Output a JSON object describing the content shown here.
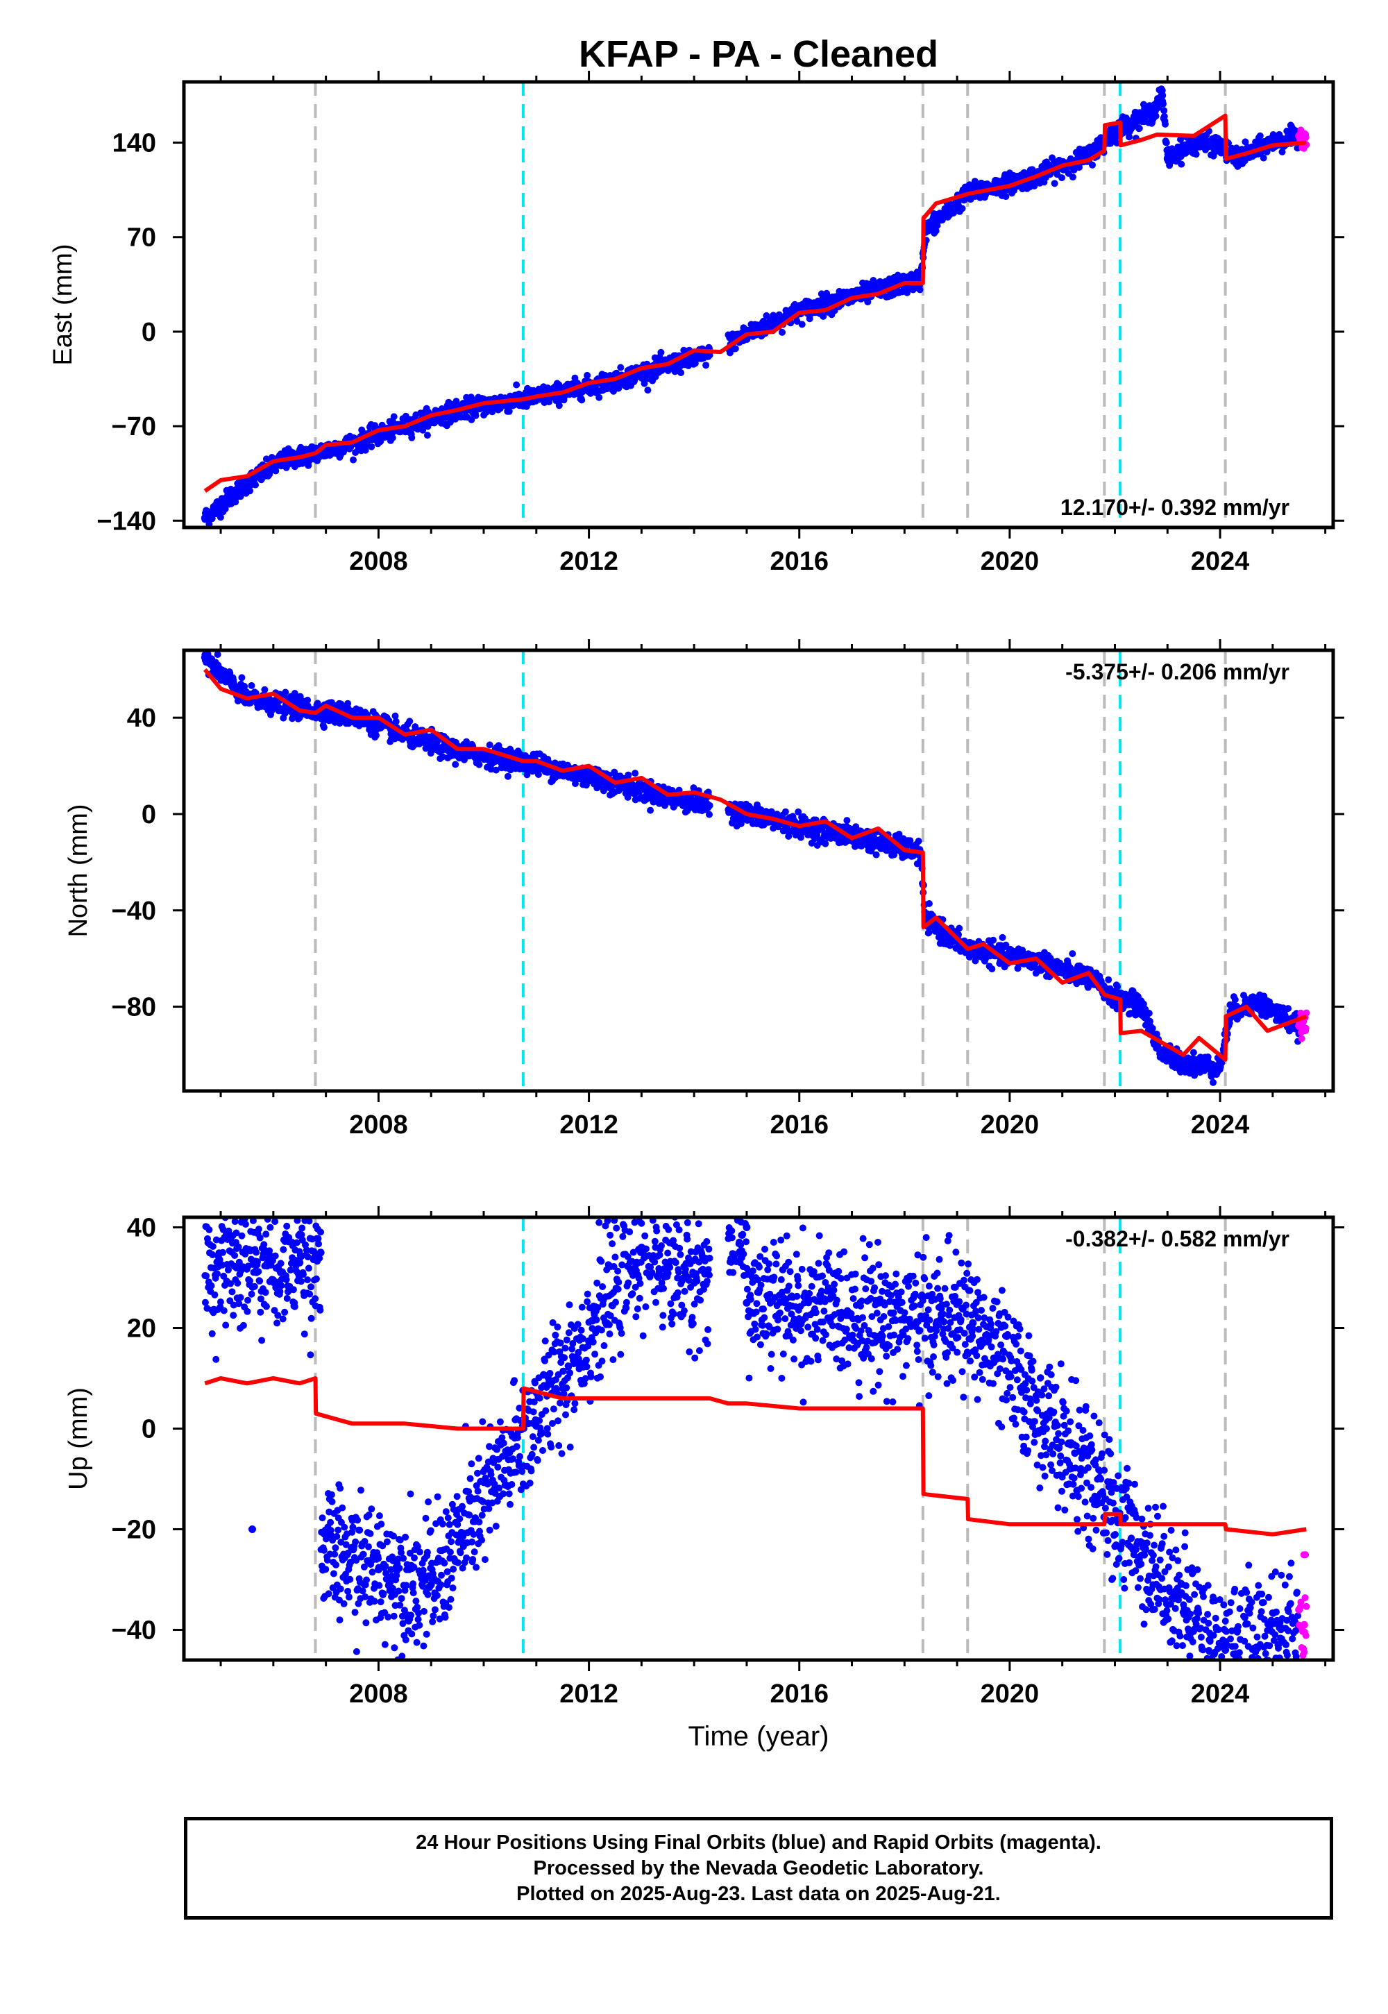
{
  "title": "KFAP  - PA - Cleaned",
  "xlabel": "Time (year)",
  "footer": {
    "line1": "24 Hour Positions Using Final Orbits (blue) and Rapid Orbits (magenta).",
    "line2": "Processed by the Nevada Geodetic Laboratory.",
    "line3": "Plotted on 2025-Aug-23. Last data on 2025-Aug-21."
  },
  "colors": {
    "final_points": "#0000ff",
    "rapid_points": "#ff00ff",
    "model": "#ff0000",
    "event_gray": "#bbbbbb",
    "event_cyan": "#00e5ee"
  },
  "chart_data": [
    {
      "type": "scatter",
      "ylabel": "East (mm)",
      "xlim": [
        2004.3,
        2026.15
      ],
      "ylim": [
        -145,
        185
      ],
      "xticks": [
        2008,
        2012,
        2016,
        2020,
        2024
      ],
      "yticks": [
        -140,
        -70,
        0,
        70,
        140
      ],
      "rate": "12.170+/- 0.392 mm/yr",
      "rate_position": "bottom-right",
      "data_start": 2004.7,
      "data_end": 2025.64,
      "rapid_start": 2025.5,
      "gaps": [
        [
          2014.3,
          2014.65
        ]
      ],
      "scatter_std": 3.5,
      "events": [
        {
          "year": 2006.8,
          "kind": "gray"
        },
        {
          "year": 2010.75,
          "kind": "cyan"
        },
        {
          "year": 2018.35,
          "kind": "gray"
        },
        {
          "year": 2019.2,
          "kind": "gray"
        },
        {
          "year": 2021.8,
          "kind": "gray"
        },
        {
          "year": 2022.1,
          "kind": "cyan"
        },
        {
          "year": 2024.1,
          "kind": "gray"
        }
      ],
      "model": [
        [
          2004.7,
          -118
        ],
        [
          2005.0,
          -110
        ],
        [
          2005.5,
          -107
        ],
        [
          2006.0,
          -96
        ],
        [
          2006.5,
          -93
        ],
        [
          2006.8,
          -90
        ],
        [
          2007.0,
          -84
        ],
        [
          2007.5,
          -82
        ],
        [
          2008.0,
          -73
        ],
        [
          2008.5,
          -70
        ],
        [
          2009.0,
          -62
        ],
        [
          2009.5,
          -58
        ],
        [
          2010.0,
          -53
        ],
        [
          2010.75,
          -50
        ],
        [
          2011.0,
          -48
        ],
        [
          2011.5,
          -45
        ],
        [
          2012.0,
          -38
        ],
        [
          2012.5,
          -35
        ],
        [
          2013.0,
          -27
        ],
        [
          2013.5,
          -24
        ],
        [
          2014.0,
          -14
        ],
        [
          2014.5,
          -15
        ],
        [
          2015.0,
          -2
        ],
        [
          2015.5,
          0
        ],
        [
          2016.0,
          14
        ],
        [
          2016.5,
          16
        ],
        [
          2017.0,
          25
        ],
        [
          2017.5,
          28
        ],
        [
          2018.0,
          36
        ],
        [
          2018.35,
          36
        ],
        [
          2018.36,
          84
        ],
        [
          2018.6,
          95
        ],
        [
          2019.2,
          102
        ],
        [
          2020.0,
          108
        ],
        [
          2020.5,
          115
        ],
        [
          2021.0,
          123
        ],
        [
          2021.5,
          127
        ],
        [
          2021.8,
          134
        ],
        [
          2021.81,
          153
        ],
        [
          2022.1,
          155
        ],
        [
          2022.11,
          138
        ],
        [
          2022.5,
          142
        ],
        [
          2022.8,
          146
        ],
        [
          2023.5,
          145
        ],
        [
          2024.1,
          160
        ],
        [
          2024.11,
          128
        ],
        [
          2024.5,
          132
        ],
        [
          2025.0,
          138
        ],
        [
          2025.64,
          140
        ]
      ],
      "data_points": [
        [
          2004.7,
          -138
        ],
        [
          2005.5,
          -112
        ],
        [
          2006.2,
          -95
        ],
        [
          2006.8,
          -90
        ],
        [
          2007.5,
          -83
        ],
        [
          2008.5,
          -70
        ],
        [
          2009.5,
          -58
        ],
        [
          2010.75,
          -50
        ],
        [
          2011.5,
          -45
        ],
        [
          2012.5,
          -36
        ],
        [
          2013.5,
          -25
        ],
        [
          2014.2,
          -18
        ],
        [
          2015.0,
          -2
        ],
        [
          2016.0,
          15
        ],
        [
          2017.0,
          26
        ],
        [
          2018.3,
          38
        ],
        [
          2018.4,
          75
        ],
        [
          2019.2,
          102
        ],
        [
          2020.5,
          115
        ],
        [
          2021.5,
          130
        ],
        [
          2022.05,
          150
        ],
        [
          2022.7,
          162
        ],
        [
          2022.9,
          175
        ],
        [
          2023.0,
          128
        ],
        [
          2023.5,
          140
        ],
        [
          2024.0,
          138
        ],
        [
          2024.3,
          128
        ],
        [
          2025.0,
          140
        ],
        [
          2025.5,
          145
        ]
      ]
    },
    {
      "type": "scatter",
      "ylabel": "North (mm)",
      "xlim": [
        2004.3,
        2026.15
      ],
      "ylim": [
        -115,
        68
      ],
      "xticks": [
        2008,
        2012,
        2016,
        2020,
        2024
      ],
      "yticks": [
        -80,
        -40,
        0,
        40
      ],
      "rate": "-5.375+/- 0.206 mm/yr",
      "rate_position": "top-right",
      "data_start": 2004.7,
      "data_end": 2025.64,
      "rapid_start": 2025.5,
      "gaps": [
        [
          2014.3,
          2014.65
        ]
      ],
      "scatter_std": 2.2,
      "events": [
        {
          "year": 2006.8,
          "kind": "gray"
        },
        {
          "year": 2010.75,
          "kind": "cyan"
        },
        {
          "year": 2018.35,
          "kind": "gray"
        },
        {
          "year": 2019.2,
          "kind": "gray"
        },
        {
          "year": 2021.8,
          "kind": "gray"
        },
        {
          "year": 2022.1,
          "kind": "cyan"
        },
        {
          "year": 2024.1,
          "kind": "gray"
        }
      ],
      "model": [
        [
          2004.7,
          60
        ],
        [
          2005.0,
          52
        ],
        [
          2005.5,
          48
        ],
        [
          2006.0,
          50
        ],
        [
          2006.5,
          43
        ],
        [
          2006.8,
          42
        ],
        [
          2007.0,
          45
        ],
        [
          2007.5,
          40
        ],
        [
          2008.0,
          40
        ],
        [
          2008.5,
          33
        ],
        [
          2009.0,
          35
        ],
        [
          2009.5,
          27
        ],
        [
          2010.0,
          27
        ],
        [
          2010.75,
          22
        ],
        [
          2011.0,
          22
        ],
        [
          2011.5,
          18
        ],
        [
          2012.0,
          20
        ],
        [
          2012.5,
          13
        ],
        [
          2013.0,
          15
        ],
        [
          2013.5,
          8
        ],
        [
          2014.0,
          9
        ],
        [
          2014.5,
          6
        ],
        [
          2015.0,
          0
        ],
        [
          2015.5,
          -2
        ],
        [
          2016.0,
          -5
        ],
        [
          2016.5,
          -3
        ],
        [
          2017.0,
          -10
        ],
        [
          2017.5,
          -6
        ],
        [
          2018.0,
          -15
        ],
        [
          2018.35,
          -16
        ],
        [
          2018.36,
          -47
        ],
        [
          2018.6,
          -43
        ],
        [
          2019.2,
          -56
        ],
        [
          2019.5,
          -54
        ],
        [
          2020.0,
          -62
        ],
        [
          2020.5,
          -60
        ],
        [
          2021.0,
          -70
        ],
        [
          2021.5,
          -66
        ],
        [
          2021.8,
          -75
        ],
        [
          2022.1,
          -77
        ],
        [
          2022.11,
          -91
        ],
        [
          2022.5,
          -90
        ],
        [
          2022.9,
          -95
        ],
        [
          2023.3,
          -100
        ],
        [
          2023.6,
          -93
        ],
        [
          2024.1,
          -102
        ],
        [
          2024.11,
          -84
        ],
        [
          2024.5,
          -80
        ],
        [
          2024.9,
          -90
        ],
        [
          2025.64,
          -84
        ]
      ],
      "data_points": [
        [
          2004.7,
          65
        ],
        [
          2005.5,
          48
        ],
        [
          2006.5,
          44
        ],
        [
          2007.5,
          41
        ],
        [
          2008.5,
          33
        ],
        [
          2009.5,
          26
        ],
        [
          2010.75,
          22
        ],
        [
          2011.5,
          18
        ],
        [
          2012.5,
          13
        ],
        [
          2013.5,
          7
        ],
        [
          2014.2,
          4
        ],
        [
          2015.0,
          0
        ],
        [
          2016.0,
          -5
        ],
        [
          2017.0,
          -9
        ],
        [
          2018.3,
          -16
        ],
        [
          2018.4,
          -44
        ],
        [
          2019.2,
          -56
        ],
        [
          2020.5,
          -61
        ],
        [
          2021.5,
          -68
        ],
        [
          2022.0,
          -76
        ],
        [
          2022.5,
          -80
        ],
        [
          2022.9,
          -100
        ],
        [
          2023.5,
          -104
        ],
        [
          2024.0,
          -105
        ],
        [
          2024.2,
          -82
        ],
        [
          2024.7,
          -78
        ],
        [
          2025.5,
          -88
        ]
      ]
    },
    {
      "type": "scatter",
      "ylabel": "Up (mm)",
      "xlim": [
        2004.3,
        2026.15
      ],
      "ylim": [
        -46,
        42
      ],
      "xticks": [
        2008,
        2012,
        2016,
        2020,
        2024
      ],
      "yticks": [
        -40,
        -20,
        0,
        20,
        40
      ],
      "rate": "-0.382+/- 0.582 mm/yr",
      "rate_position": "top-right",
      "data_start": 2004.7,
      "data_end": 2025.64,
      "rapid_start": 2025.5,
      "gaps": [
        [
          2014.3,
          2014.65
        ]
      ],
      "scatter_std": 6.2,
      "events": [
        {
          "year": 2006.8,
          "kind": "gray"
        },
        {
          "year": 2010.75,
          "kind": "cyan"
        },
        {
          "year": 2018.35,
          "kind": "gray"
        },
        {
          "year": 2019.2,
          "kind": "gray"
        },
        {
          "year": 2021.8,
          "kind": "gray"
        },
        {
          "year": 2022.1,
          "kind": "cyan"
        },
        {
          "year": 2024.1,
          "kind": "gray"
        }
      ],
      "model": [
        [
          2004.7,
          9
        ],
        [
          2005.0,
          10
        ],
        [
          2005.5,
          9
        ],
        [
          2006.0,
          10
        ],
        [
          2006.5,
          9
        ],
        [
          2006.8,
          10
        ],
        [
          2006.81,
          3
        ],
        [
          2007.5,
          1
        ],
        [
          2008.5,
          1
        ],
        [
          2009.5,
          0
        ],
        [
          2010.5,
          0
        ],
        [
          2010.75,
          0
        ],
        [
          2010.76,
          8
        ],
        [
          2011.5,
          6
        ],
        [
          2012.5,
          6
        ],
        [
          2013.5,
          6
        ],
        [
          2014.3,
          6
        ],
        [
          2014.65,
          5
        ],
        [
          2015.0,
          5
        ],
        [
          2016.0,
          4
        ],
        [
          2017.0,
          4
        ],
        [
          2018.35,
          4
        ],
        [
          2018.36,
          -13
        ],
        [
          2019.2,
          -14
        ],
        [
          2019.21,
          -18
        ],
        [
          2020.0,
          -19
        ],
        [
          2021.0,
          -19
        ],
        [
          2021.8,
          -19
        ],
        [
          2021.81,
          -17
        ],
        [
          2022.1,
          -17
        ],
        [
          2022.11,
          -19
        ],
        [
          2023.0,
          -19
        ],
        [
          2024.1,
          -19
        ],
        [
          2024.11,
          -20
        ],
        [
          2025.0,
          -21
        ],
        [
          2025.64,
          -20
        ]
      ],
      "data_points": [
        [
          2005.3,
          32
        ],
        [
          2006.5,
          33
        ],
        [
          2006.9,
          35
        ],
        [
          2005.6,
          -20
        ],
        [
          2008.0,
          -28
        ],
        [
          2009.0,
          -31
        ],
        [
          2013.0,
          36
        ],
        [
          2014.0,
          29
        ],
        [
          2015.0,
          40
        ],
        [
          2014.9,
          34
        ],
        [
          2015.0,
          25
        ],
        [
          2019.3,
          21
        ],
        [
          2023.8,
          -42
        ],
        [
          2024.1,
          -44
        ],
        [
          2025.6,
          -39
        ],
        [
          2025.5,
          -36
        ]
      ]
    }
  ]
}
